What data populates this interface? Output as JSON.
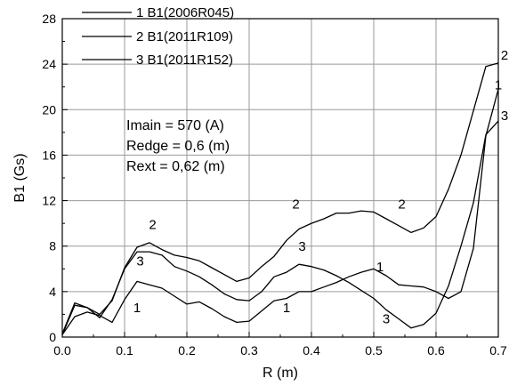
{
  "chart_data": {
    "type": "line",
    "xlabel": "R (m)",
    "ylabel": "B1 (Gs)",
    "xlim": [
      0.0,
      0.7
    ],
    "ylim": [
      0,
      28
    ],
    "xticks": [
      "0.0",
      "0.1",
      "0.2",
      "0.3",
      "0.4",
      "0.5",
      "0.6",
      "0.7"
    ],
    "yticks": [
      "0",
      "4",
      "8",
      "12",
      "16",
      "20",
      "24",
      "28"
    ],
    "grid": true,
    "legend_position": "top-left",
    "annotations": [
      "Imain = 570 (A)",
      "Redge = 0,6 (m)",
      "Rext = 0,62 (m)"
    ],
    "series": [
      {
        "name": "1 B1(2006R045)",
        "marker_label": "1",
        "x": [
          0.0,
          0.02,
          0.04,
          0.06,
          0.08,
          0.1,
          0.12,
          0.14,
          0.16,
          0.18,
          0.2,
          0.22,
          0.24,
          0.26,
          0.28,
          0.3,
          0.32,
          0.34,
          0.36,
          0.38,
          0.4,
          0.42,
          0.44,
          0.46,
          0.48,
          0.5,
          0.52,
          0.54,
          0.56,
          0.58,
          0.6,
          0.62,
          0.64,
          0.66,
          0.68,
          0.7
        ],
        "y": [
          0.2,
          1.8,
          2.2,
          1.9,
          1.3,
          3.3,
          4.9,
          4.6,
          4.3,
          3.6,
          2.9,
          3.1,
          2.5,
          1.8,
          1.3,
          1.4,
          2.3,
          3.2,
          3.4,
          4.0,
          4.0,
          4.4,
          4.8,
          5.3,
          5.7,
          6.0,
          5.4,
          4.6,
          4.5,
          4.4,
          4.0,
          3.4,
          4.0,
          7.8,
          17.7,
          21.8
        ],
        "labels": [
          {
            "x": 0.12,
            "y": 2.2
          },
          {
            "x": 0.36,
            "y": 2.2
          },
          {
            "x": 0.51,
            "y": 5.8
          },
          {
            "x": 0.7,
            "y": 21.8
          }
        ]
      },
      {
        "name": "2 B1(2011R109)",
        "marker_label": "2",
        "x": [
          0.0,
          0.02,
          0.04,
          0.06,
          0.08,
          0.1,
          0.12,
          0.14,
          0.16,
          0.18,
          0.2,
          0.22,
          0.24,
          0.26,
          0.28,
          0.3,
          0.32,
          0.34,
          0.36,
          0.38,
          0.4,
          0.42,
          0.44,
          0.46,
          0.48,
          0.5,
          0.52,
          0.54,
          0.56,
          0.58,
          0.6,
          0.62,
          0.64,
          0.66,
          0.68,
          0.7
        ],
        "y": [
          0.3,
          3.0,
          2.6,
          2.0,
          3.2,
          6.1,
          7.9,
          8.3,
          7.7,
          7.2,
          7.0,
          6.7,
          6.1,
          5.5,
          4.9,
          5.2,
          6.2,
          7.1,
          8.5,
          9.5,
          10.0,
          10.4,
          10.9,
          10.9,
          11.1,
          11.0,
          10.4,
          9.8,
          9.2,
          9.6,
          10.6,
          13.0,
          16.0,
          19.9,
          23.8,
          24.1
        ],
        "labels": [
          {
            "x": 0.145,
            "y": 9.5
          },
          {
            "x": 0.375,
            "y": 11.3
          },
          {
            "x": 0.545,
            "y": 11.3
          },
          {
            "x": 0.71,
            "y": 24.4
          }
        ]
      },
      {
        "name": "3 B1(2011R152)",
        "marker_label": "3",
        "x": [
          0.0,
          0.02,
          0.04,
          0.06,
          0.08,
          0.1,
          0.12,
          0.14,
          0.16,
          0.18,
          0.2,
          0.22,
          0.24,
          0.26,
          0.28,
          0.3,
          0.32,
          0.34,
          0.36,
          0.38,
          0.4,
          0.42,
          0.44,
          0.46,
          0.48,
          0.5,
          0.52,
          0.54,
          0.56,
          0.58,
          0.6,
          0.62,
          0.64,
          0.66,
          0.68,
          0.7
        ],
        "y": [
          0.2,
          2.8,
          2.6,
          1.7,
          3.3,
          6.0,
          7.5,
          7.5,
          7.2,
          6.2,
          5.8,
          5.3,
          4.6,
          3.8,
          3.3,
          3.2,
          4.0,
          5.3,
          5.7,
          6.4,
          6.2,
          5.9,
          5.4,
          4.8,
          4.1,
          3.4,
          2.4,
          1.6,
          0.8,
          1.1,
          2.1,
          4.5,
          8.0,
          11.8,
          17.8,
          19.0
        ],
        "labels": [
          {
            "x": 0.125,
            "y": 6.3
          },
          {
            "x": 0.385,
            "y": 7.6
          },
          {
            "x": 0.52,
            "y": 1.2
          },
          {
            "x": 0.71,
            "y": 19.1
          }
        ]
      }
    ]
  }
}
